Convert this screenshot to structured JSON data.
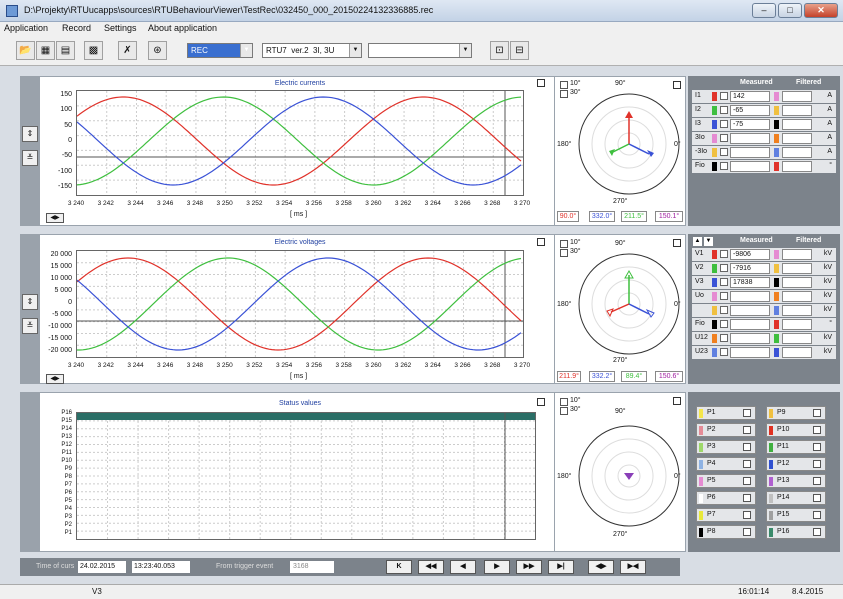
{
  "window": {
    "title": "D:\\Projekty\\RTUucapps\\sources\\RTUBehaviourViewer\\TestRec\\032450_000_20150224132336885.rec",
    "min": "–",
    "max": "□",
    "close": "✕"
  },
  "menu": [
    "Application",
    "Record",
    "Settings",
    "About application"
  ],
  "toolbar": {
    "mode": "REC",
    "device": "RTU7",
    "version": "ver.2",
    "phase": "3I, 3U",
    "extra": ""
  },
  "panel1": {
    "title": "Electric currents",
    "yticks": [
      "150",
      "100",
      "50",
      "0",
      "-50",
      "-100",
      "-150"
    ],
    "xticks": [
      "3 240",
      "3 242",
      "3 244",
      "3 246",
      "3 248",
      "3 250",
      "3 252",
      "3 254",
      "3 256",
      "3 258",
      "3 260",
      "3 262",
      "3 264",
      "3 266",
      "3 268",
      "3 270"
    ],
    "xunit": "[ ms ]"
  },
  "panel2": {
    "title": "Electric voltages",
    "yticks": [
      "20 000",
      "15 000",
      "10 000",
      "5 000",
      "0",
      "-5 000",
      "-10 000",
      "-15 000",
      "-20 000"
    ],
    "xticks": [
      "3 240",
      "3 242",
      "3 244",
      "3 246",
      "3 248",
      "3 250",
      "3 252",
      "3 254",
      "3 256",
      "3 258",
      "3 260",
      "3 262",
      "3 264",
      "3 266",
      "3 268",
      "3 270"
    ],
    "xunit": "[ ms ]"
  },
  "panel3": {
    "title": "Status values",
    "ylabels": [
      "P16",
      "P15",
      "P14",
      "P13",
      "P12",
      "P11",
      "P10",
      "P9",
      "P8",
      "P7",
      "P6",
      "P5",
      "P4",
      "P3",
      "P2",
      "P1"
    ]
  },
  "polar": {
    "c10": "10°",
    "c30": "30°",
    "a90": "90°",
    "a180": "180°",
    "a0": "0°",
    "a270": "270°"
  },
  "polar1_angles": [
    "90.0°",
    "332.0°",
    "211.5°",
    "150.1°"
  ],
  "polar2_angles": [
    "211.9°",
    "332.2°",
    "89.4°",
    "150.6°"
  ],
  "meas1": {
    "hdr_measured": "Measured",
    "hdr_filtered": "Filtered",
    "rows": [
      {
        "label": "I1",
        "value": "142",
        "unit": "A"
      },
      {
        "label": "I2",
        "value": "-65",
        "unit": "A"
      },
      {
        "label": "I3",
        "value": "-75",
        "unit": "A"
      },
      {
        "label": "3Io",
        "value": "",
        "unit": "A"
      },
      {
        "label": "-3Io",
        "value": "",
        "unit": "A"
      },
      {
        "label": "Fio",
        "value": "",
        "unit": "°"
      }
    ]
  },
  "meas2": {
    "hdr_measured": "Measured",
    "hdr_filtered": "Filtered",
    "rows": [
      {
        "label": "V1",
        "value": "-9806",
        "unit": "kV"
      },
      {
        "label": "V2",
        "value": "-7916",
        "unit": "kV"
      },
      {
        "label": "V3",
        "value": "17838",
        "unit": "kV"
      },
      {
        "label": "Uo",
        "value": "",
        "unit": "kV"
      },
      {
        "label": "",
        "value": "",
        "unit": "kV"
      },
      {
        "label": "Fio",
        "value": "",
        "unit": "°"
      },
      {
        "label": "U12",
        "value": "",
        "unit": "kV"
      },
      {
        "label": "U23",
        "value": "",
        "unit": "kV"
      }
    ]
  },
  "plist": [
    "P1",
    "P2",
    "P3",
    "P4",
    "P5",
    "P6",
    "P7",
    "P8",
    "P9",
    "P10",
    "P11",
    "P12",
    "P13",
    "P14",
    "P15",
    "P16"
  ],
  "pcolors": [
    "#f5e64a",
    "#e58b96",
    "#9ed86a",
    "#8eb2e3",
    "#e58bd2",
    "#ffffff",
    "#e8e83a",
    "#000000",
    "#f0c040",
    "#e03020",
    "#40b040",
    "#3050d0",
    "#b060d0",
    "#c0c0c0",
    "#a0a0a0",
    "#3a8a6a"
  ],
  "bottom": {
    "time_label": "Time of curs",
    "date": "24.02.2015",
    "time": "13:23:40.053",
    "trigger_label": "From trigger event",
    "trigger_value": "3168",
    "nav": [
      "K",
      "◀◀",
      "◀",
      "▶",
      "▶▶",
      "▶|",
      "◀▶",
      "▶◀"
    ]
  },
  "status": {
    "left": "V3",
    "time": "16:01:14",
    "date": "8.4.2015"
  },
  "colors": {
    "red": "#e0322a",
    "green": "#3fbf3f",
    "blue": "#3a52d6"
  }
}
